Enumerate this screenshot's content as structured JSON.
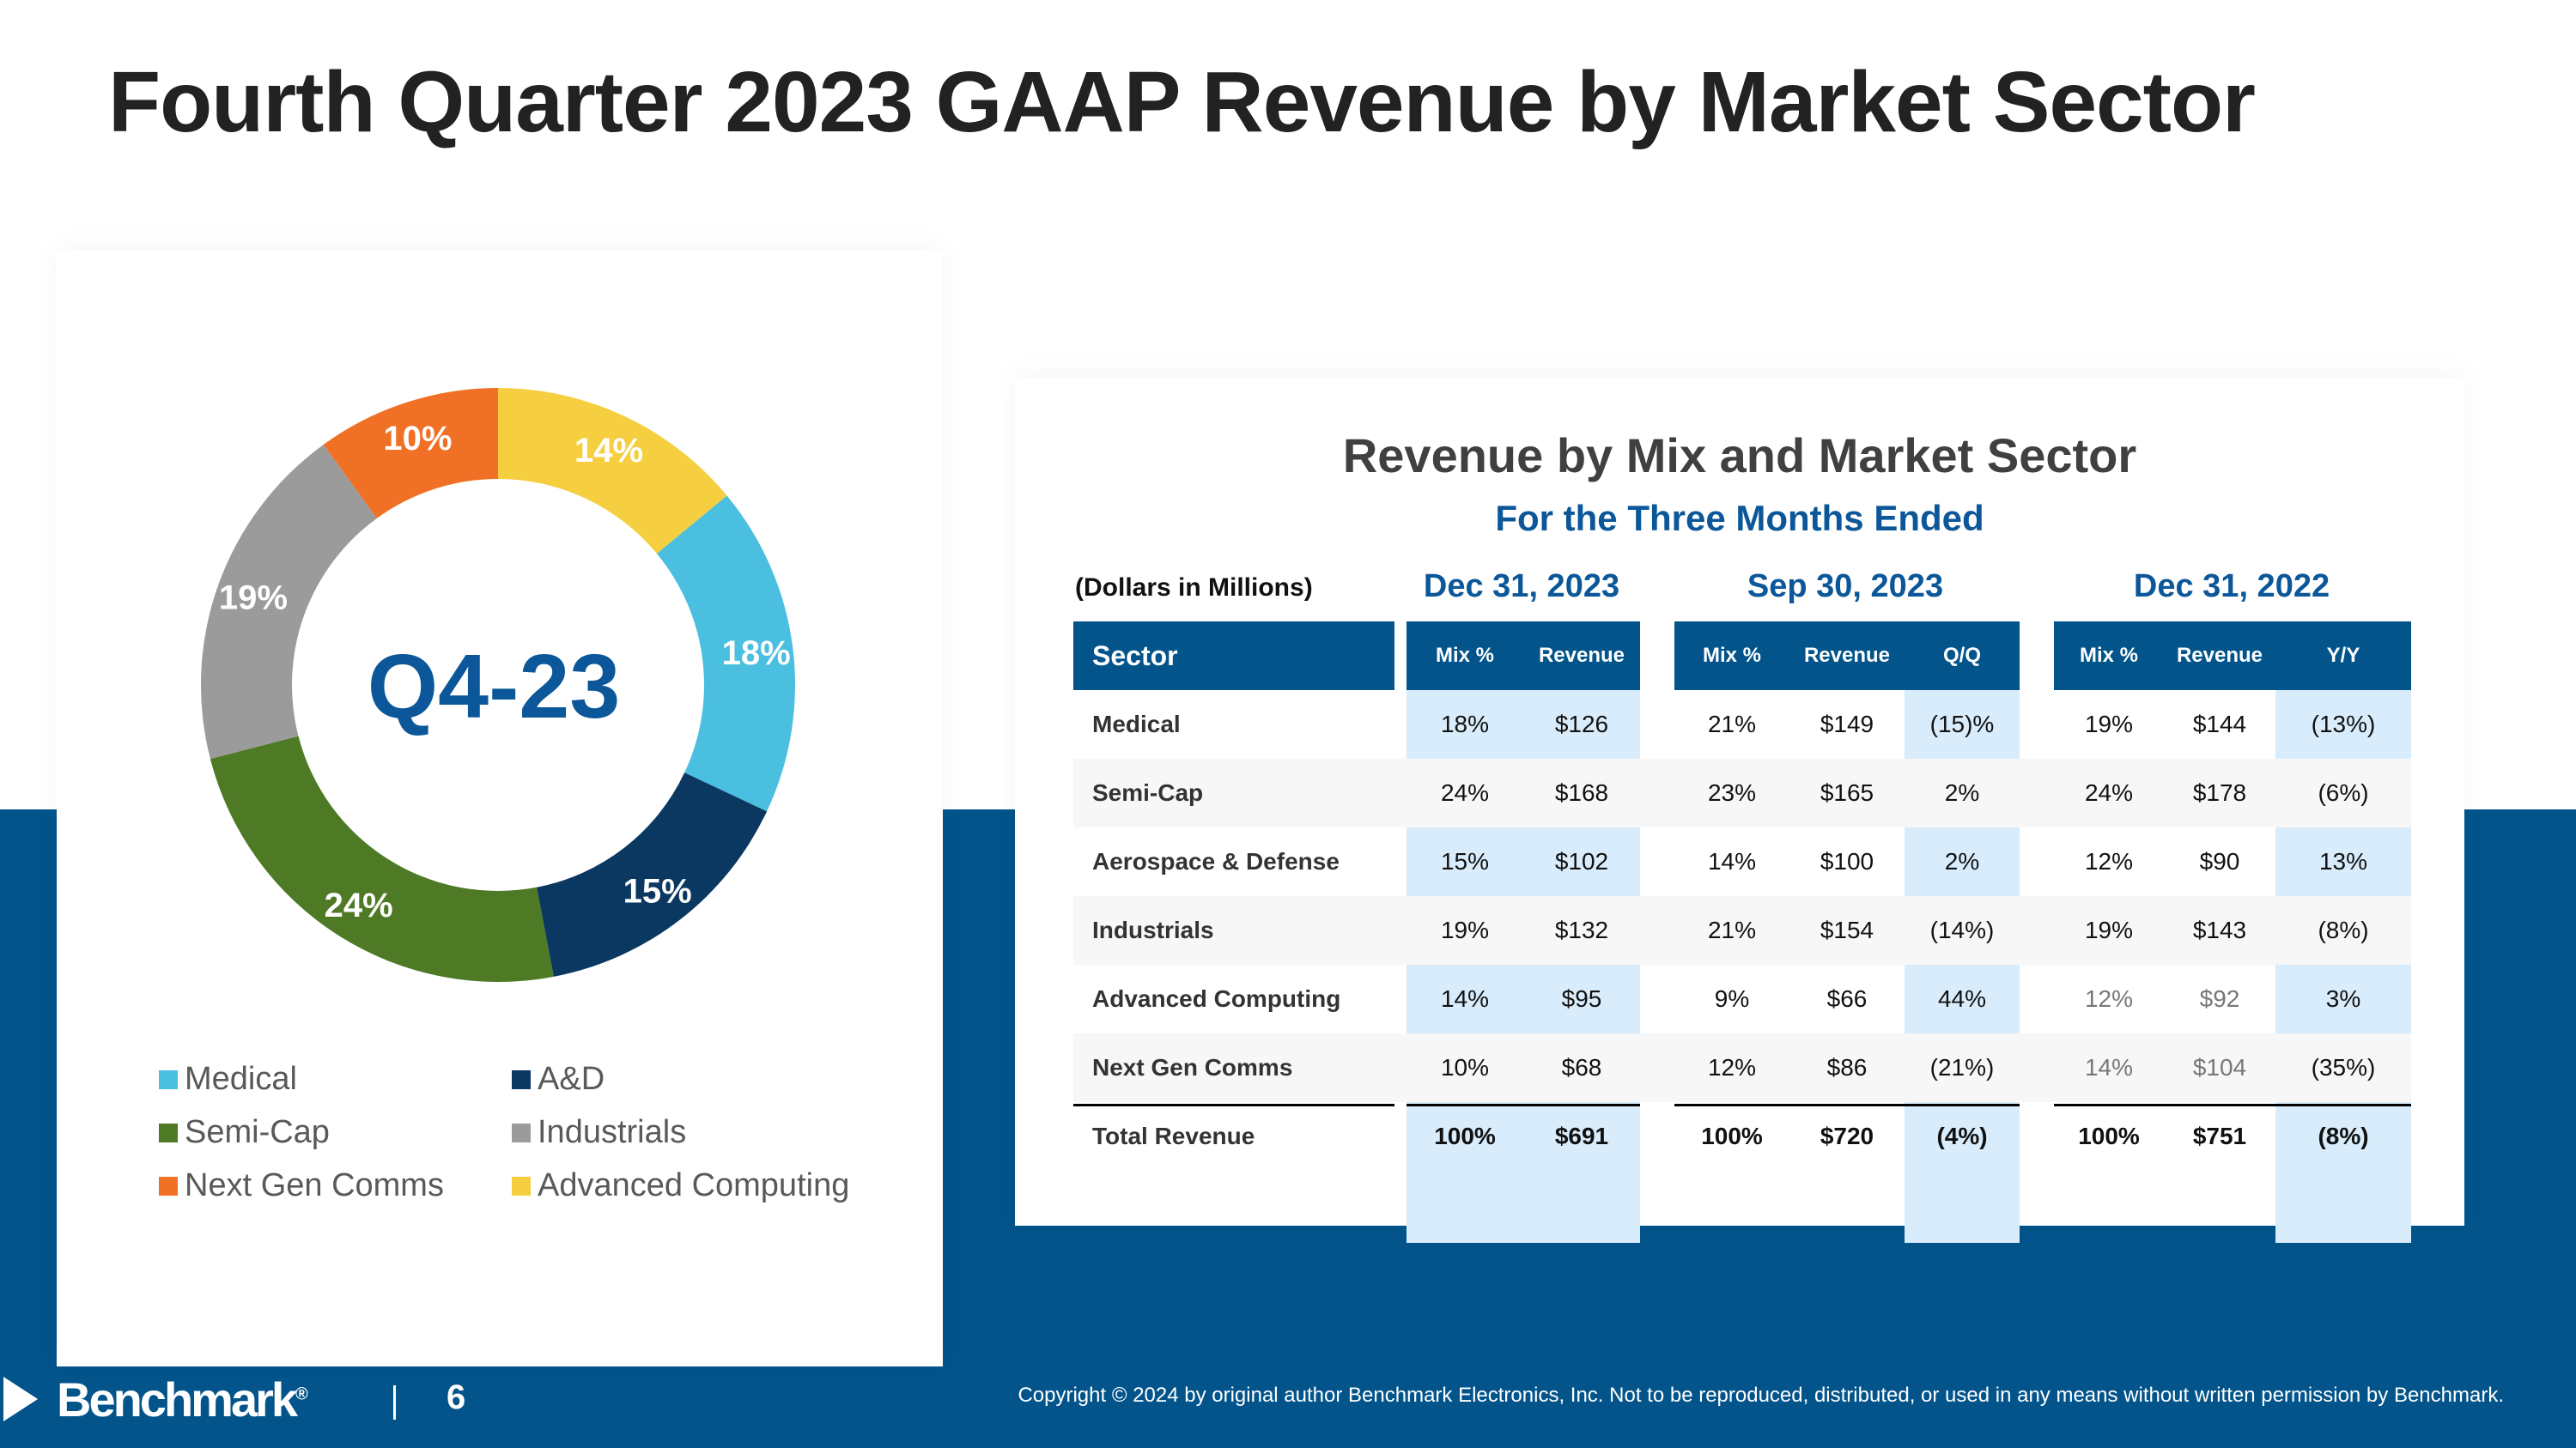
{
  "title": "Fourth Quarter 2023 GAAP Revenue by Market Sector",
  "chart_data": {
    "type": "pie",
    "title": "Q4-23",
    "categories": [
      "Medical",
      "A&D",
      "Semi-Cap",
      "Industrials",
      "Next Gen Comms",
      "Advanced Computing"
    ],
    "values": [
      18,
      15,
      24,
      19,
      10,
      14
    ],
    "labels": [
      "18%",
      "15%",
      "24%",
      "19%",
      "10%",
      "14%"
    ],
    "colors": [
      "#4bbfdf",
      "#0b3861",
      "#4e7a26",
      "#9b9b9b",
      "#f07126",
      "#f5cf3f"
    ],
    "draw_order": [
      5,
      0,
      1,
      2,
      3,
      4
    ],
    "label_colors": [
      "#ffffff",
      "#ffffff",
      "#ffffff",
      "#ffffff",
      "#ffffff",
      "#ffffff"
    ],
    "legend": [
      {
        "label": "Medical",
        "color": "#4bbfdf"
      },
      {
        "label": "A&D",
        "color": "#0b3861"
      },
      {
        "label": "Semi-Cap",
        "color": "#4e7a26"
      },
      {
        "label": "Industrials",
        "color": "#9b9b9b"
      },
      {
        "label": "Next Gen Comms",
        "color": "#f07126"
      },
      {
        "label": "Advanced Computing",
        "color": "#f5cf3f"
      }
    ]
  },
  "table": {
    "title": "Revenue by Mix and Market Sector",
    "subtitle": "For the Three Months Ended",
    "units": "(Dollars in Millions)",
    "periods": [
      "Dec 31, 2023",
      "Sep 30, 2023",
      "Dec 31, 2022"
    ],
    "headers": {
      "sector": "Sector",
      "p1": [
        "Mix %",
        "Revenue"
      ],
      "p2": [
        "Mix %",
        "Revenue",
        "Q/Q"
      ],
      "p3": [
        "Mix %",
        "Revenue",
        "Y/Y"
      ]
    },
    "rows": [
      {
        "sector": "Medical",
        "c": [
          "18%",
          "$126",
          "21%",
          "$149",
          "(15)%",
          "19%",
          "$144",
          "(13%)"
        ]
      },
      {
        "sector": "Semi-Cap",
        "c": [
          "24%",
          "$168",
          "23%",
          "$165",
          "2%",
          "24%",
          "$178",
          "(6%)"
        ]
      },
      {
        "sector": "Aerospace & Defense",
        "c": [
          "15%",
          "$102",
          "14%",
          "$100",
          "2%",
          "12%",
          "$90",
          "13%"
        ]
      },
      {
        "sector": "Industrials",
        "c": [
          "19%",
          "$132",
          "21%",
          "$154",
          "(14%)",
          "19%",
          "$143",
          "(8%)"
        ]
      },
      {
        "sector": "Advanced Computing",
        "c": [
          "14%",
          "$95",
          "9%",
          "$66",
          "44%",
          "12%",
          "$92",
          "3%"
        ]
      },
      {
        "sector": "Next  Gen Comms",
        "c": [
          "10%",
          "$68",
          "12%",
          "$86",
          "(21%)",
          "14%",
          "$104",
          "(35%)"
        ]
      }
    ],
    "total": {
      "sector": "Total Revenue",
      "c": [
        "100%",
        "$691",
        "100%",
        "$720",
        "(4%)",
        "100%",
        "$751",
        "(8%)"
      ]
    }
  },
  "footer": {
    "logo": "Benchmark",
    "page": "6",
    "copyright": "Copyright © 2024 by original author Benchmark Electronics, Inc. Not to be reproduced, distributed, or used in any means without written permission by Benchmark."
  }
}
